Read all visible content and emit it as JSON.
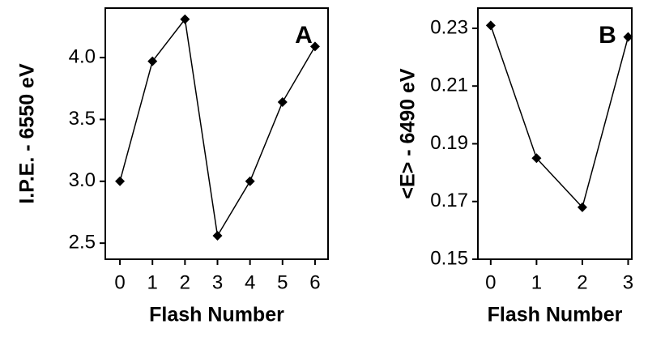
{
  "chart_data": [
    {
      "type": "line",
      "annotation": "A",
      "x_label": "Flash Number",
      "y_label": "I.P.E. - 6550 eV",
      "x": [
        0,
        1,
        2,
        3,
        4,
        5,
        6
      ],
      "series": [
        {
          "color": "#000000",
          "values": [
            3.0,
            3.97,
            4.31,
            2.56,
            3.0,
            3.64,
            4.09
          ]
        }
      ],
      "xlim": [
        -0.45,
        6.4
      ],
      "xticks": [
        0,
        1,
        2,
        3,
        4,
        5,
        6
      ],
      "ylim": [
        2.37,
        4.4
      ],
      "yticks": [
        2.5,
        {
          "value": 3,
          "label": "3.0"
        },
        3.5,
        {
          "value": 4,
          "label": "4.0"
        }
      ]
    },
    {
      "type": "line",
      "annotation": "B",
      "x_label": "Flash Number",
      "y_label": "<E> - 6490 eV",
      "x": [
        0,
        1,
        2,
        3
      ],
      "series": [
        {
          "color": "#000000",
          "values": [
            0.231,
            0.185,
            0.168,
            0.227
          ]
        }
      ],
      "xlim": [
        -0.28,
        3.08
      ],
      "xticks": [
        0,
        1,
        2,
        3
      ],
      "ylim": [
        0.15,
        0.237
      ],
      "yticks": [
        0.15,
        0.17,
        0.19,
        0.21,
        0.23
      ]
    }
  ]
}
